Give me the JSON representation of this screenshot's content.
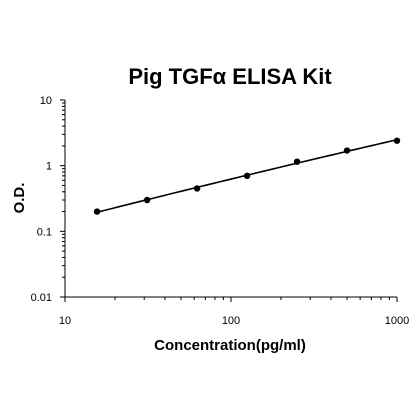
{
  "chart_data": {
    "type": "scatter",
    "title": "Pig TGFα ELISA Kit",
    "xlabel": "Concentration(pg/ml)",
    "ylabel": "O.D.",
    "xscale": "log",
    "yscale": "log",
    "xlim": [
      10,
      1000
    ],
    "ylim": [
      0.01,
      10
    ],
    "x_ticks": [
      10,
      100,
      1000
    ],
    "y_ticks": [
      0.01,
      0.1,
      1,
      10
    ],
    "x_tick_labels": [
      "10",
      "100",
      "1000"
    ],
    "y_tick_labels": [
      "0.01",
      "0.1",
      "1",
      "10"
    ],
    "grid": false,
    "legend": "none",
    "series": [
      {
        "x": [
          15.6,
          31.25,
          62.5,
          125,
          250,
          500,
          1000
        ],
        "y": [
          0.2,
          0.3,
          0.45,
          0.7,
          1.15,
          1.7,
          2.4
        ],
        "marker": "circle",
        "fit_line": true,
        "color": "#000000"
      }
    ]
  }
}
